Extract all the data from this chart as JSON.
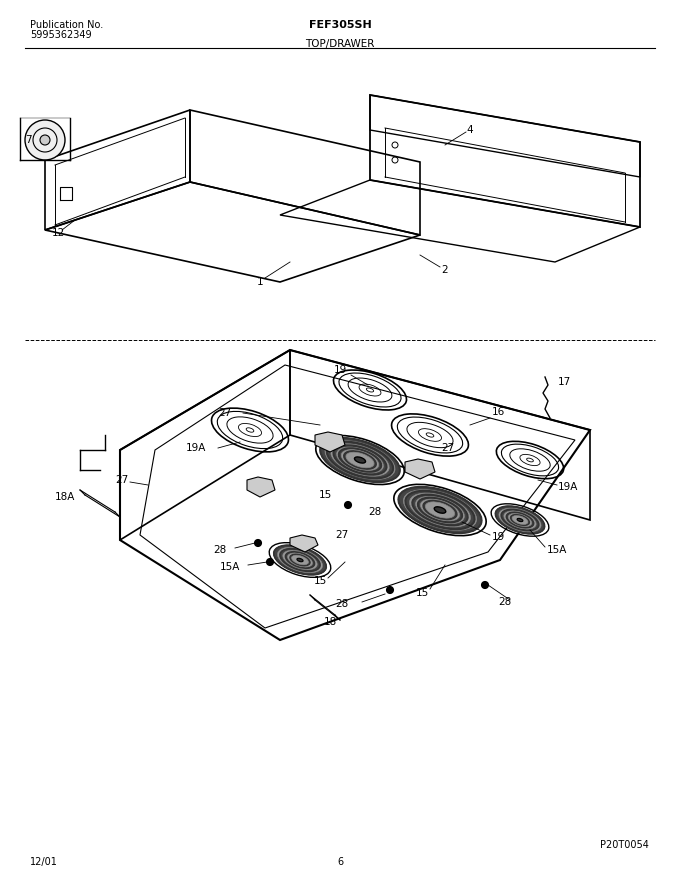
{
  "title": "FEF305SH",
  "subtitle": "TOP/DRAWER",
  "pub_label": "Publication No.",
  "pub_number": "5995362349",
  "date": "12/01",
  "page": "6",
  "part_code": "P20T0054",
  "bg_color": "#ffffff",
  "line_color": "#000000",
  "fig_width": 6.8,
  "fig_height": 8.8,
  "dpi": 100
}
